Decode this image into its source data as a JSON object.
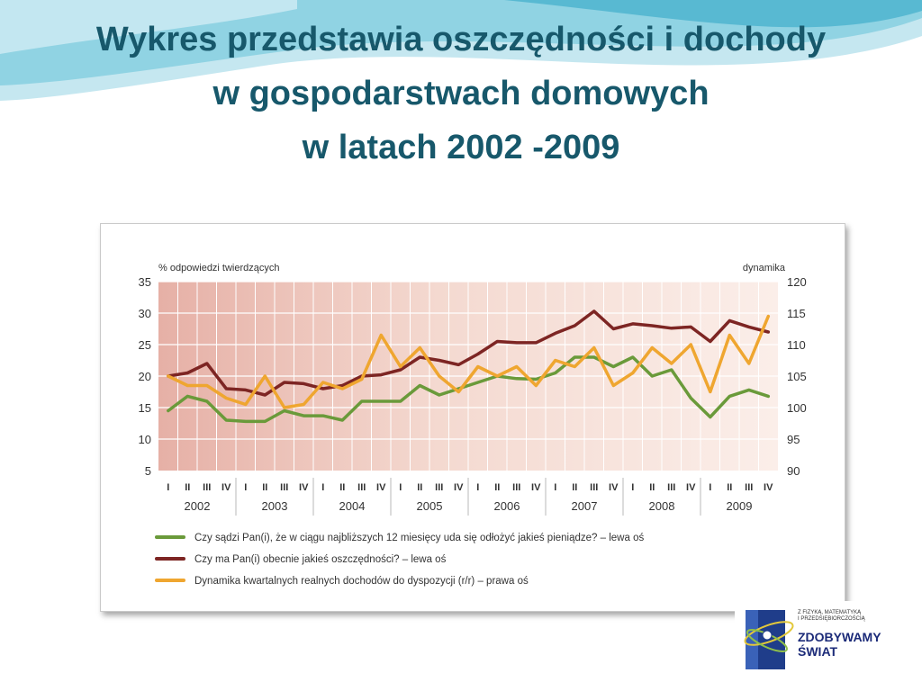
{
  "title_lines": [
    "Wykres przedstawia oszczędności i dochody",
    "w gospodarstwach domowych",
    "w latach 2002 -2009"
  ],
  "logo": {
    "small_lines": [
      "Z FIZYKĄ, MATEMATYKĄ",
      "I PRZEDSIĘBIORCZOŚCIĄ"
    ],
    "big_lines": [
      "ZDOBYWAMY",
      "ŚWIAT"
    ]
  },
  "colors": {
    "title": "#17586b",
    "green": "#6a9a3a",
    "maroon": "#7d2523",
    "orange": "#efa630"
  },
  "chart_data": {
    "type": "line",
    "ylabel_left": "% odpowiedzi twierdzących",
    "ylabel_right": "dynamika",
    "ylim_left": [
      5,
      35
    ],
    "ylim_right": [
      90,
      120
    ],
    "yticks_left": [
      5,
      10,
      15,
      20,
      25,
      30,
      35
    ],
    "yticks_right": [
      90,
      95,
      100,
      105,
      110,
      115,
      120
    ],
    "quarters": [
      "I",
      "II",
      "III",
      "IV",
      "I",
      "II",
      "III",
      "IV",
      "I",
      "II",
      "III",
      "IV",
      "I",
      "II",
      "III",
      "IV",
      "I",
      "II",
      "III",
      "IV",
      "I",
      "II",
      "III",
      "IV",
      "I",
      "II",
      "III",
      "IV",
      "I",
      "II",
      "III",
      "IV"
    ],
    "years": [
      "2002",
      "2003",
      "2004",
      "2005",
      "2006",
      "2007",
      "2008",
      "2009"
    ],
    "legend": [
      "Czy sądzi Pan(i), że w ciągu najbliższych 12 miesięcy uda się odłożyć jakieś pieniądze? – lewa oś",
      "Czy ma Pan(i) obecnie jakieś oszczędności? – lewa oś",
      "Dynamika kwartalnych realnych dochodów do dyspozycji (r/r) – prawa oś"
    ],
    "series": [
      {
        "axis": "left",
        "color": "#6a9a3a",
        "values": [
          14.5,
          16.8,
          16,
          13,
          12.8,
          12.8,
          14.5,
          13.7,
          13.7,
          13,
          16,
          16,
          16,
          18.5,
          17,
          18,
          19,
          20,
          19.6,
          19.5,
          20.5,
          23,
          23,
          21.5,
          23,
          20,
          21,
          16.5,
          13.5,
          16.8,
          17.8,
          16.8
        ]
      },
      {
        "axis": "left",
        "color": "#7d2523",
        "values": [
          20,
          20.5,
          22,
          18,
          17.8,
          17,
          19,
          18.8,
          18,
          18.5,
          20,
          20.2,
          21,
          23,
          22.5,
          21.8,
          23.5,
          25.5,
          25.3,
          25.3,
          26.8,
          28,
          30.3,
          27.5,
          28.3,
          28,
          27.6,
          27.8,
          25.5,
          28.8,
          27.8,
          27
        ]
      },
      {
        "axis": "right",
        "color": "#efa630",
        "values": [
          105,
          103.5,
          103.5,
          101.5,
          100.5,
          105,
          100,
          100.5,
          104,
          103,
          104.5,
          111.5,
          106.5,
          109.5,
          105,
          102.5,
          106.5,
          105,
          106.5,
          103.5,
          107.5,
          106.5,
          109.5,
          103.5,
          105.5,
          109.5,
          107,
          110,
          102.5,
          111.5,
          107,
          114.5
        ]
      }
    ]
  }
}
